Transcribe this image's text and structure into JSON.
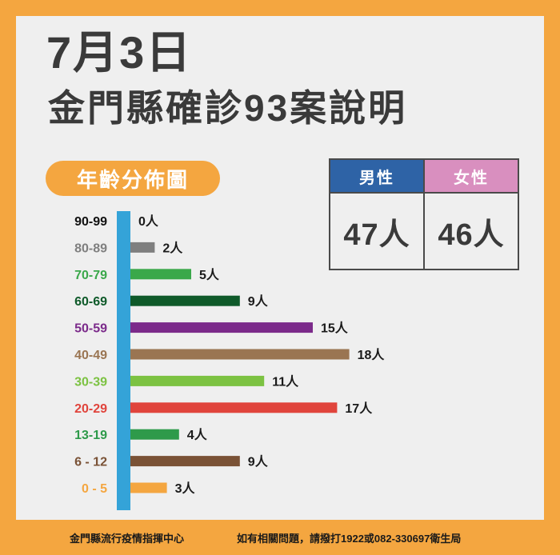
{
  "title": {
    "date": "7月3日",
    "main": "金門縣確診93案說明"
  },
  "section_label": "年齡分佈圖",
  "gender": {
    "male": {
      "label": "男性",
      "value": "47人",
      "color": "#2e63a6"
    },
    "female": {
      "label": "女性",
      "value": "46人",
      "color": "#d98fbf"
    }
  },
  "chart_data": {
    "type": "bar",
    "orientation": "horizontal",
    "title": "年齡分佈圖",
    "categories": [
      "90-99",
      "80-89",
      "70-79",
      "60-69",
      "50-59",
      "40-49",
      "30-39",
      "20-29",
      "13-19",
      "6 - 12",
      "0  -  5"
    ],
    "values": [
      0,
      2,
      5,
      9,
      15,
      18,
      11,
      17,
      4,
      9,
      3
    ],
    "data_labels": [
      "0人",
      "2人",
      "5人",
      "9人",
      "15人",
      "18人",
      "11人",
      "17人",
      "4人",
      "9人",
      "3人"
    ],
    "colors": [
      "#111111",
      "#7f7f7f",
      "#3aa84a",
      "#0f5a2a",
      "#7b2a8a",
      "#9a7552",
      "#7cc242",
      "#e0443c",
      "#2e9a4a",
      "#7a5236",
      "#f4a640"
    ],
    "axis_color": "#34a3d8",
    "xlim": [
      0,
      18
    ]
  },
  "footer": {
    "left": "金門縣流行疫情指揮中心",
    "right": "如有相關問題，請撥打1922或082-330697衛生局"
  },
  "colors": {
    "background": "#f4a640",
    "panel": "#efefef",
    "text": "#3a3a3a"
  }
}
